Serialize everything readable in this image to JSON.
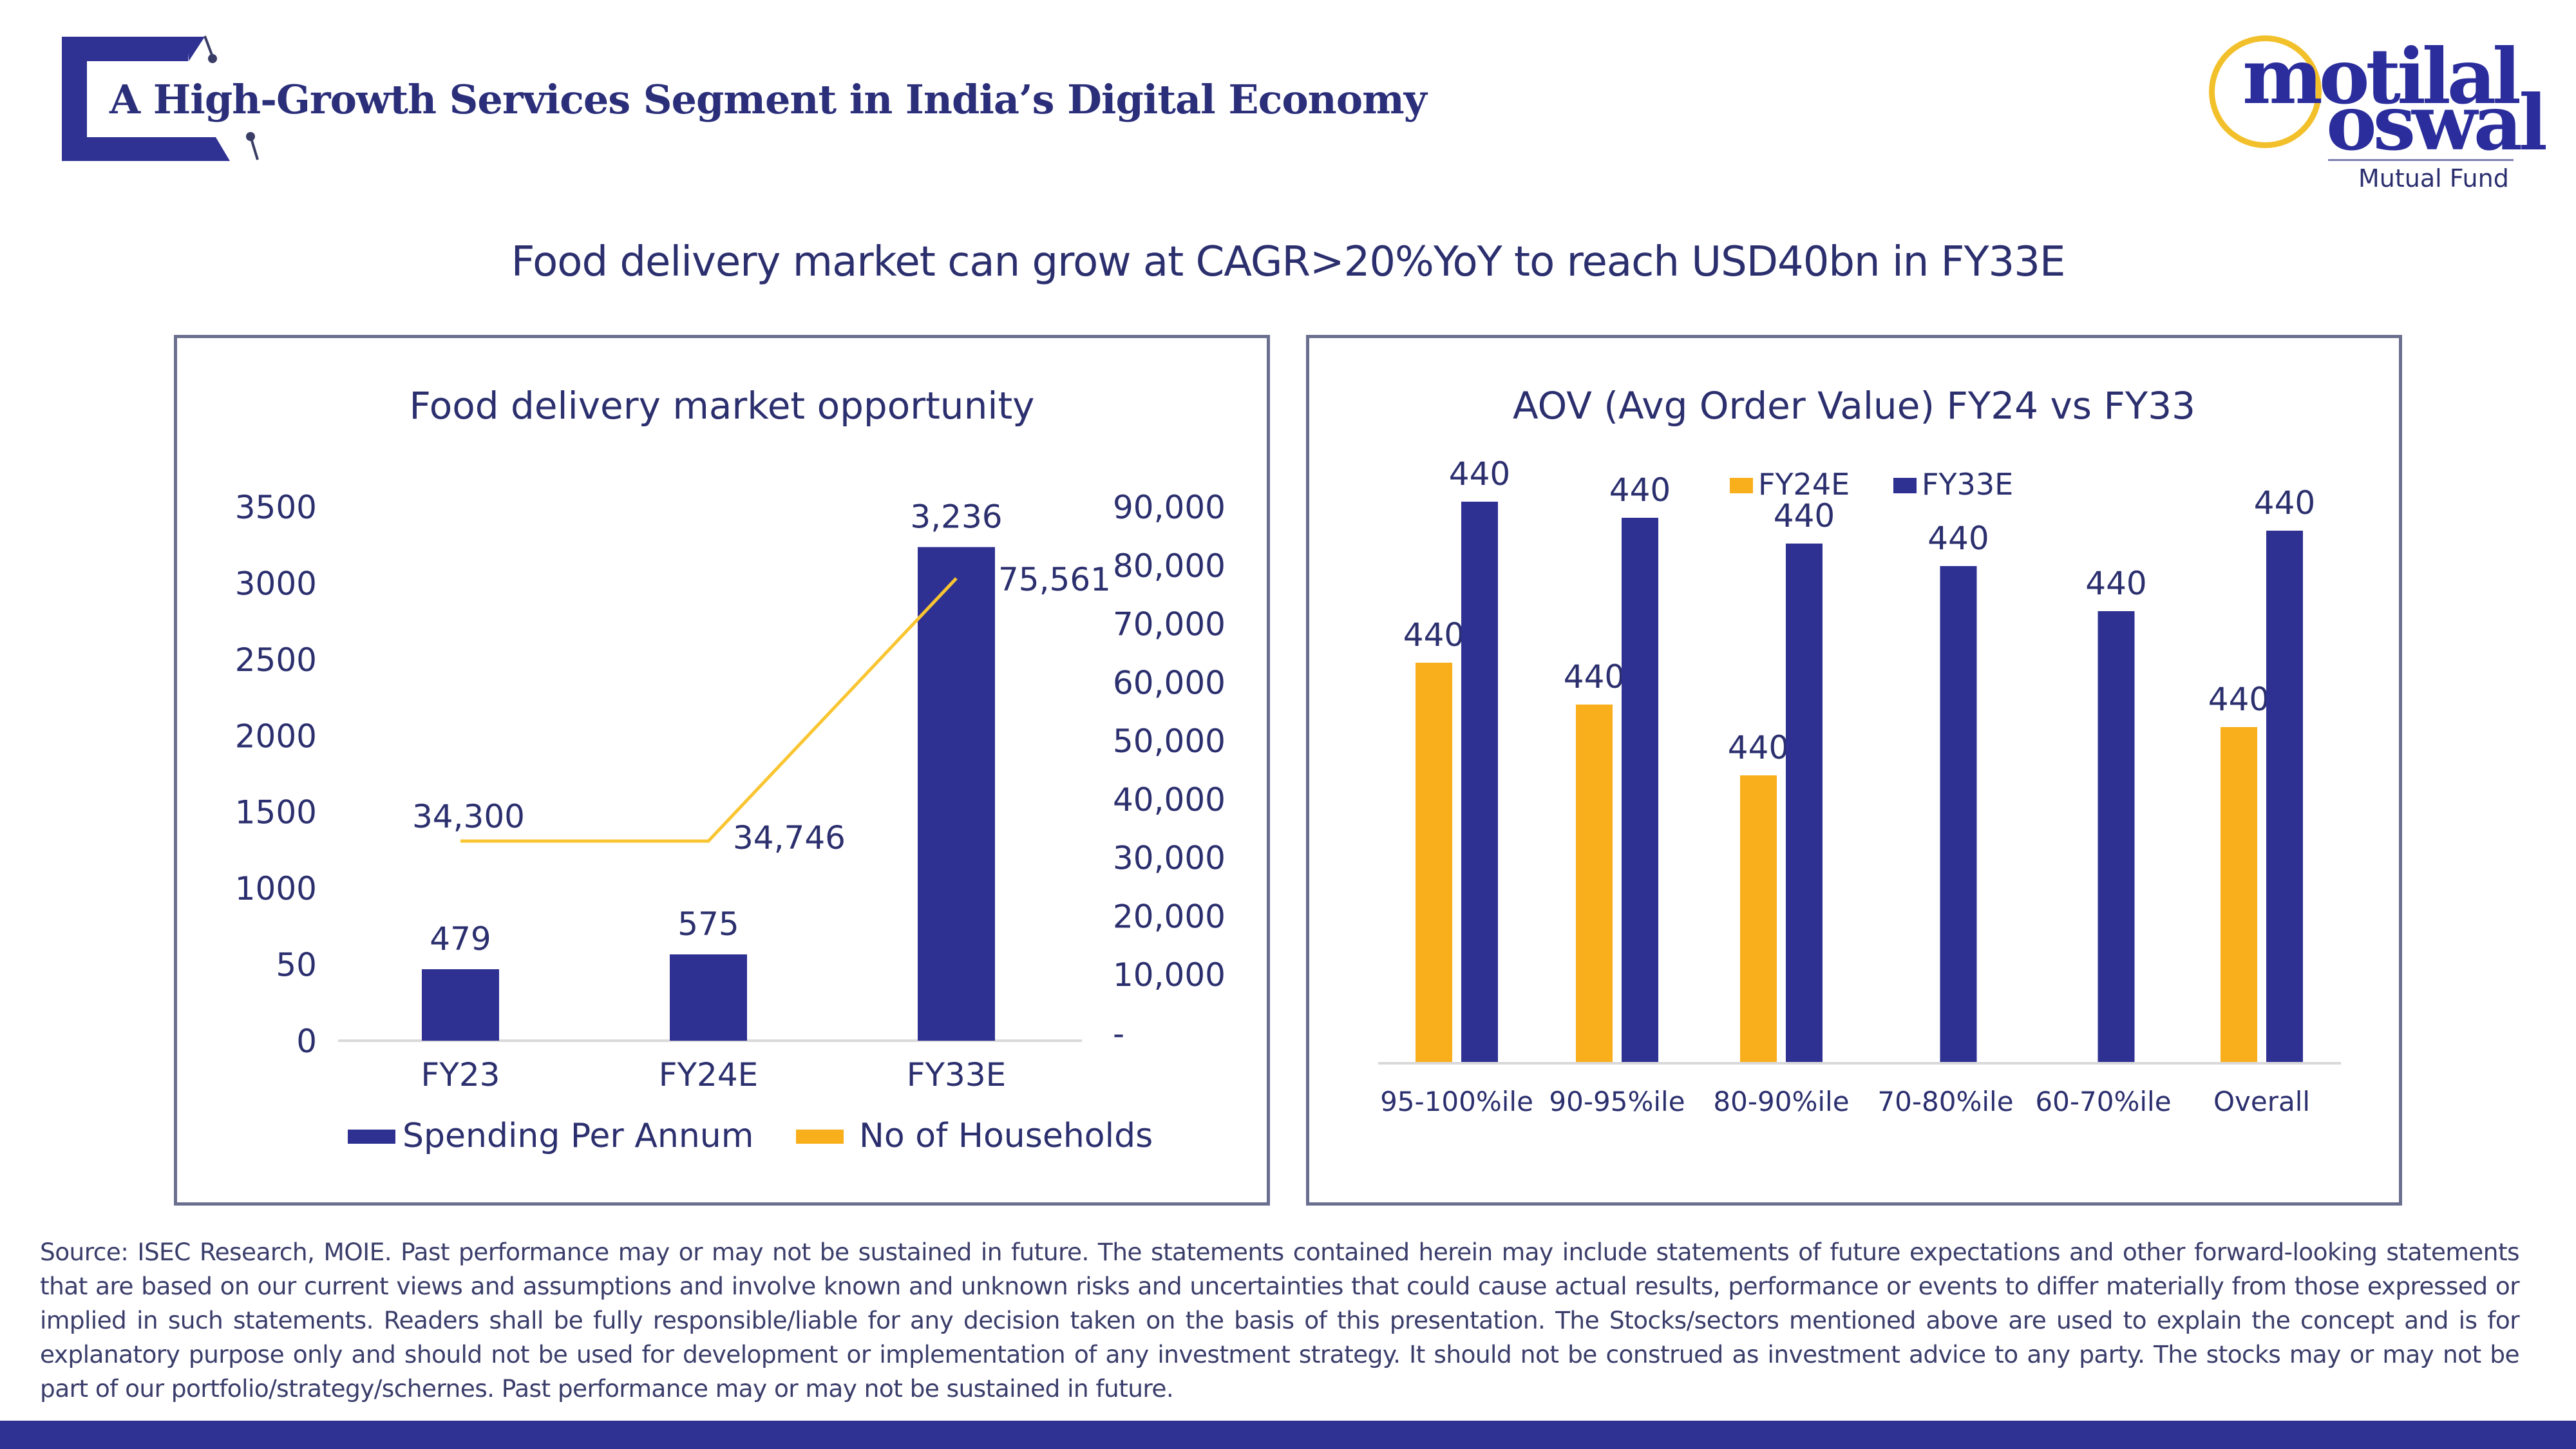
{
  "header": {
    "title": "A High-Growth Services Segment in India’s Digital Economy",
    "logo": {
      "line1": "motilal",
      "line2": "oswal",
      "line3": "Mutual Fund",
      "ring_color": "#F2C02A",
      "text_color": "#2A2D9B"
    }
  },
  "subtitle": "Food delivery market can grow at CAGR>20%YoY to reach USD40bn in FY33E",
  "colors": {
    "navy": "#2E3192",
    "gold": "#F9AE1B",
    "text": "#2B2F6E",
    "axis": "#D9D9D9"
  },
  "chart_data": [
    {
      "type": "bar",
      "title": "Food delivery market opportunity",
      "categories": [
        "FY23",
        "FY24E",
        "FY33E"
      ],
      "series": [
        {
          "name": "Spending Per Annum",
          "kind": "bar",
          "axis": "left",
          "color": "#2E3192",
          "values": [
            479,
            575,
            3236
          ],
          "labels": [
            "479",
            "575",
            "3,236"
          ]
        },
        {
          "name": "No of Households",
          "kind": "line",
          "axis": "right",
          "color": "#F9C531",
          "values": [
            34300,
            34746,
            75561
          ],
          "labels": [
            "34,300",
            "34,746",
            "75,561"
          ]
        }
      ],
      "y_left": {
        "ticks": [
          "0",
          "50",
          "1000",
          "1500",
          "2000",
          "2500",
          "3000",
          "3500"
        ],
        "range": [
          0,
          3500
        ]
      },
      "y_right": {
        "ticks": [
          "-",
          "10,000",
          "20,000",
          "30,000",
          "40,000",
          "50,000",
          "60,000",
          "70,000",
          "80,000",
          "90,000"
        ],
        "range": [
          0,
          90000
        ]
      },
      "xlabel": "",
      "ylabel": "",
      "legend": {
        "placement": "bottom",
        "entries": [
          "Spending Per Annum",
          "No of Households"
        ]
      },
      "grid": false
    },
    {
      "type": "bar",
      "title": "AOV (Avg Order Value) FY24 vs FY33",
      "categories": [
        "95-100%ile",
        "90-95%ile",
        "80-90%ile",
        "70-80%ile",
        "60-70%ile",
        "Overall"
      ],
      "series": [
        {
          "name": "FY24E",
          "color": "#F9AE1B",
          "values": [
            440,
            440,
            440,
            null,
            null,
            440
          ],
          "labels": [
            "440",
            "440",
            "440",
            "",
            "",
            "440"
          ],
          "relative_heights": [
            0.62,
            0.555,
            0.445,
            null,
            null,
            0.52
          ]
        },
        {
          "name": "FY33E",
          "color": "#2E3192",
          "values": [
            440,
            440,
            440,
            440,
            440,
            440
          ],
          "labels": [
            "440",
            "440",
            "440",
            "440",
            "440",
            "440"
          ],
          "relative_heights": [
            0.87,
            0.845,
            0.805,
            0.77,
            0.7,
            0.825
          ]
        }
      ],
      "note": "All data labels read 440; bar heights differ visually and are captured as relative heights (fraction of plot height).",
      "legend": {
        "placement": "top",
        "entries": [
          "FY24E",
          "FY33E"
        ]
      },
      "yaxis_visible": false,
      "grid": false
    }
  ],
  "disclaimer": "Source: ISEC Research, MOIE. Past performance may or may not be sustained in future. The statements contained herein may include statements of future expectations and other forward-looking statements that are based on our current views and assumptions and involve known and unknown risks and uncertainties that could cause actual results, performance or events to differ materially from those expressed or implied in such statements. Readers shall be fully responsible/liable for any decision taken on the basis of this presentation. The Stocks/sectors mentioned above are used to explain the concept and is for explanatory purpose only and should not be used for development or implementation of any investment strategy. It should not be construed as investment advice to any party. The stocks may or may not be part of our portfolio/strategy/schernes. Past performance may or may not be sustained in future."
}
